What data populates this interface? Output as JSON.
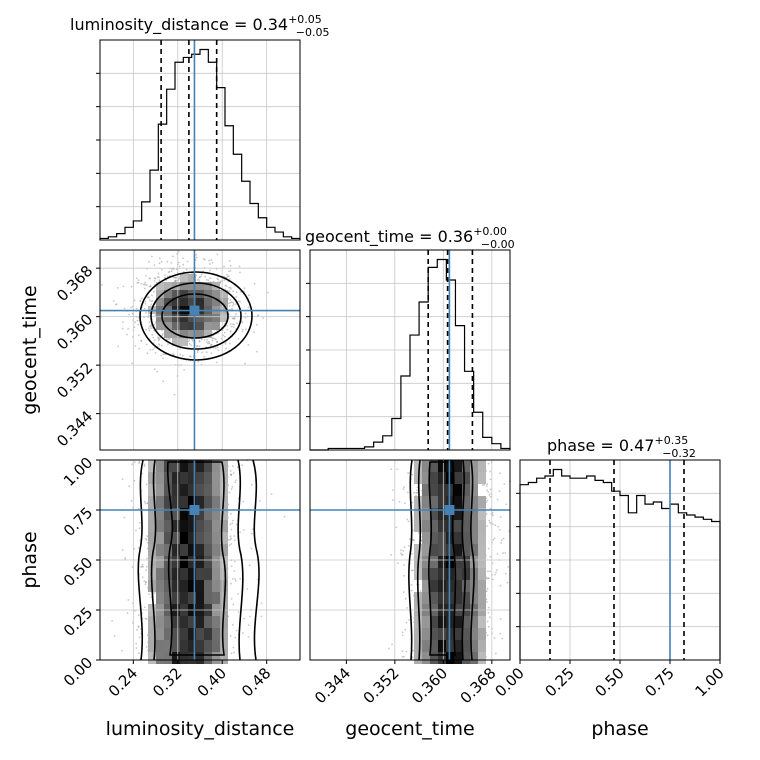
{
  "chart_data": {
    "type": "corner",
    "parameters": [
      "luminosity_distance",
      "geocent_time",
      "phase"
    ],
    "truths": {
      "luminosity_distance": 0.35,
      "geocent_time": 0.361,
      "phase": 0.75
    },
    "ranges": {
      "luminosity_distance": [
        0.18,
        0.54
      ],
      "geocent_time": [
        0.338,
        0.371
      ],
      "phase": [
        0.0,
        1.0
      ]
    },
    "ticks": {
      "luminosity_distance": {
        "values": [
          0.24,
          0.32,
          0.4,
          0.48
        ],
        "labels": [
          "0.24",
          "0.32",
          "0.40",
          "0.48"
        ]
      },
      "geocent_time": {
        "values": [
          0.344,
          0.352,
          0.36,
          0.368
        ],
        "labels": [
          "0.344",
          "0.352",
          "0.360",
          "0.368"
        ]
      },
      "phase": {
        "values": [
          0.0,
          0.25,
          0.5,
          0.75,
          1.0
        ],
        "labels": [
          "0.00",
          "0.25",
          "0.50",
          "0.75",
          "1.00"
        ]
      }
    },
    "titles": {
      "luminosity_distance": {
        "prefix": "luminosity_distance = 0.34",
        "up": "+0.05",
        "down": "−0.05"
      },
      "geocent_time": {
        "prefix": "geocent_time = 0.36",
        "up": "+0.00",
        "down": "−0.00"
      },
      "phase": {
        "prefix": "phase = 0.47",
        "up": "+0.35",
        "down": "−0.32"
      }
    },
    "quantiles": {
      "luminosity_distance": [
        0.29,
        0.34,
        0.39
      ],
      "geocent_time": [
        0.3575,
        0.3607,
        0.3648
      ],
      "phase": [
        0.15,
        0.47,
        0.82
      ]
    },
    "histograms": {
      "luminosity_distance": [
        1,
        2,
        4,
        8,
        12,
        24,
        44,
        73,
        95,
        112,
        115,
        117,
        120,
        112,
        96,
        72,
        54,
        37,
        23,
        14,
        8,
        5,
        2,
        1
      ],
      "geocent_time": [
        0,
        0,
        1,
        1,
        1,
        1,
        2,
        5,
        9,
        20,
        47,
        73,
        94,
        116,
        121,
        108,
        79,
        50,
        24,
        8,
        4,
        1
      ],
      "phase": [
        81,
        82,
        84,
        85,
        88,
        85,
        84,
        84,
        85,
        83,
        82,
        78,
        76,
        68,
        76,
        72,
        73,
        70,
        72,
        68,
        67,
        66,
        65,
        64
      ]
    },
    "scatter_2d": {
      "geocent_time_vs_luminosity_distance": {
        "center": [
          0.34,
          0.3612
        ],
        "spread": [
          0.045,
          0.0035
        ]
      },
      "phase_vs_luminosity_distance": {
        "center": [
          0.34,
          0.5
        ],
        "spread": [
          0.045,
          0.29
        ]
      },
      "phase_vs_geocent_time": {
        "center": [
          0.3612,
          0.5
        ],
        "spread": [
          0.0035,
          0.29
        ]
      }
    }
  }
}
